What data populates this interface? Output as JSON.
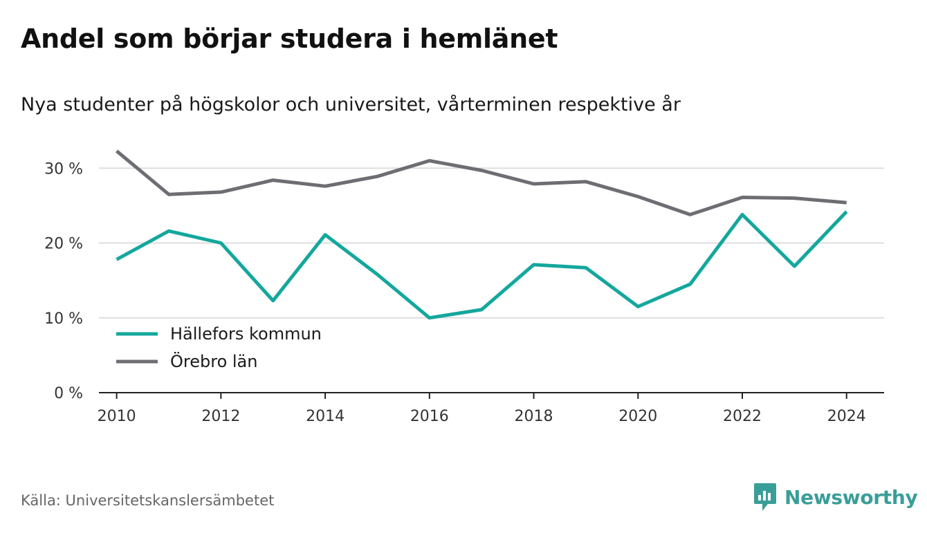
{
  "title": "Andel som börjar studera i hemlänet",
  "subtitle": "Nya studenter på högskolor och universitet, vårterminen respektive år",
  "source": "Källa: Universitetskanslersämbetet",
  "brand": {
    "name": "Newsworthy",
    "icon": "newsworthy-logo-icon",
    "color": "#3a9e98"
  },
  "chart_data": {
    "type": "line",
    "x": [
      2010,
      2011,
      2012,
      2013,
      2014,
      2015,
      2016,
      2017,
      2018,
      2019,
      2020,
      2021,
      2022,
      2023,
      2024
    ],
    "series": [
      {
        "name": "Hällefors kommun",
        "color": "#14a79d",
        "values": [
          17.8,
          21.6,
          20.0,
          12.3,
          21.1,
          15.8,
          10.0,
          11.1,
          17.1,
          16.7,
          11.5,
          14.5,
          23.8,
          16.9,
          24.2
        ]
      },
      {
        "name": "Örebro län",
        "color": "#6f6d73",
        "values": [
          32.3,
          26.5,
          26.8,
          28.4,
          27.6,
          28.9,
          31.0,
          29.7,
          27.9,
          28.2,
          26.2,
          23.8,
          26.1,
          26.0,
          25.4
        ]
      }
    ],
    "yticks": [
      {
        "value": 0,
        "label": "0 %"
      },
      {
        "value": 10,
        "label": "10 %"
      },
      {
        "value": 20,
        "label": "20 %"
      },
      {
        "value": 30,
        "label": "30 %"
      }
    ],
    "xticks": [
      2010,
      2012,
      2014,
      2016,
      2018,
      2020,
      2022,
      2024
    ],
    "ylim": [
      0,
      34
    ],
    "xlim": [
      2009.66,
      2024.72
    ],
    "grid": true,
    "legend_position": "bottom-left"
  }
}
